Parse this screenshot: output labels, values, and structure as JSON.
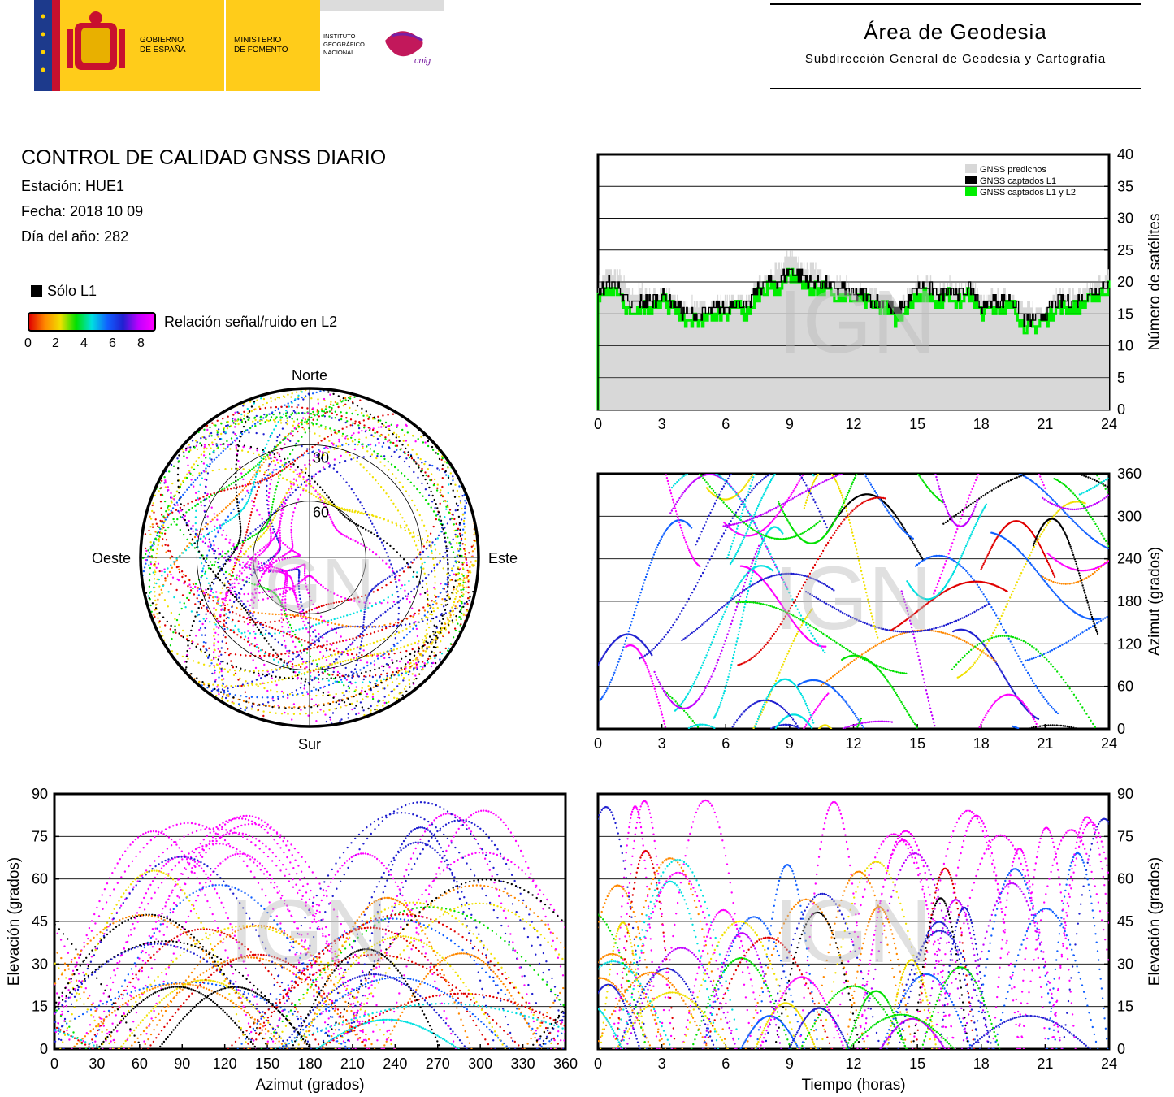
{
  "header": {
    "logos": {
      "gobierno": "GOBIERNO\nDE ESPAÑA",
      "ministerio": "MINISTERIO\nDE FOMENTO",
      "instituto": "INSTITUTO\nGEOGRÁFICO\nNACIONAL",
      "cnig": "cnig"
    },
    "title": "Área de Geodesia",
    "subtitle": "Subdirección General de Geodesia y Cartografía"
  },
  "info": {
    "title": "CONTROL DE CALIDAD GNSS DIARIO",
    "station": "Estación: HUE1",
    "date": "Fecha: 2018 10 09",
    "doy": "Día del año: 282"
  },
  "legend": {
    "l1_only": "Sólo L1",
    "snr_label": "Relación señal/ruido en L2",
    "snr_ticks": [
      "0",
      "2",
      "4",
      "6",
      "8"
    ]
  },
  "colors": {
    "snr_scale": [
      "#e00000",
      "#ff8800",
      "#f0e000",
      "#00e000",
      "#00e0e0",
      "#1060ff",
      "#2020d0",
      "#c000ff",
      "#ff00ff"
    ],
    "predicted": "#d8d8d8",
    "l1": "#000000",
    "l1l2": "#00ee00"
  },
  "watermark": "IGN",
  "chart_data": [
    {
      "id": "skyplot",
      "type": "scatter",
      "cardinals": {
        "north": "Norte",
        "south": "Sur",
        "east": "Este",
        "west": "Oeste"
      },
      "elevation_rings": [
        "30",
        "60"
      ]
    },
    {
      "id": "satellites",
      "type": "area",
      "ylabel": "Número de satélites",
      "x_ticks": [
        "0",
        "3",
        "6",
        "9",
        "12",
        "15",
        "18",
        "21",
        "24"
      ],
      "y_ticks": [
        "0",
        "5",
        "10",
        "15",
        "20",
        "25",
        "30",
        "35",
        "40"
      ],
      "xlim": [
        0,
        24
      ],
      "ylim": [
        0,
        40
      ],
      "legend": [
        "GNSS predichos",
        "GNSS captados L1",
        "GNSS captados L1 y L2"
      ],
      "x": [
        0,
        0.5,
        1,
        1.5,
        2,
        2.5,
        3,
        3.5,
        4,
        4.5,
        5,
        5.5,
        6,
        6.5,
        7,
        7.5,
        8,
        8.5,
        9,
        9.5,
        10,
        10.5,
        11,
        11.5,
        12,
        12.5,
        13,
        13.5,
        14,
        14.5,
        15,
        15.5,
        16,
        16.5,
        17,
        17.5,
        18,
        18.5,
        19,
        19.5,
        20,
        20.5,
        21,
        21.5,
        22,
        22.5,
        23,
        23.5,
        24
      ],
      "series": [
        {
          "name": "GNSS predichos",
          "values": [
            20,
            22,
            21,
            18,
            19,
            18,
            19,
            18,
            16,
            17,
            16,
            17,
            17,
            18,
            17,
            20,
            21,
            22,
            25,
            23,
            22,
            21,
            20,
            20,
            19,
            19,
            18,
            18,
            16,
            18,
            20,
            20,
            19,
            20,
            19,
            20,
            17,
            18,
            18,
            18,
            16,
            16,
            16,
            18,
            18,
            18,
            19,
            20,
            21
          ]
        },
        {
          "name": "GNSS captados L1",
          "values": [
            18,
            20,
            19,
            16,
            17,
            17,
            18,
            17,
            15,
            15,
            15,
            16,
            16,
            17,
            16,
            19,
            20,
            20,
            22,
            21,
            20,
            20,
            19,
            19,
            18,
            18,
            17,
            17,
            15,
            17,
            19,
            19,
            18,
            19,
            18,
            19,
            16,
            17,
            17,
            17,
            14,
            14,
            15,
            17,
            17,
            17,
            18,
            19,
            20
          ]
        },
        {
          "name": "GNSS captados L1 y L2",
          "values": [
            17,
            19,
            18,
            15,
            16,
            16,
            17,
            16,
            14,
            14,
            14,
            15,
            15,
            16,
            15,
            18,
            19,
            19,
            21,
            20,
            19,
            19,
            18,
            18,
            17,
            17,
            16,
            16,
            14,
            16,
            18,
            18,
            17,
            18,
            17,
            18,
            15,
            16,
            16,
            16,
            13,
            13,
            14,
            16,
            16,
            16,
            17,
            18,
            19
          ]
        }
      ]
    },
    {
      "id": "azimuth-time",
      "type": "scatter",
      "ylabel": "Azimut (grados)",
      "x_ticks": [
        "0",
        "3",
        "6",
        "9",
        "12",
        "15",
        "18",
        "21",
        "24"
      ],
      "y_ticks": [
        "0",
        "60",
        "120",
        "180",
        "240",
        "300",
        "360"
      ],
      "xlim": [
        0,
        24
      ],
      "ylim": [
        0,
        360
      ]
    },
    {
      "id": "elev-azimuth",
      "type": "scatter",
      "xlabel": "Azimut (grados)",
      "ylabel": "Elevación (grados)",
      "x_ticks": [
        "0",
        "30",
        "60",
        "90",
        "120",
        "150",
        "180",
        "210",
        "240",
        "270",
        "300",
        "330",
        "360"
      ],
      "y_ticks": [
        "0",
        "15",
        "30",
        "45",
        "60",
        "75",
        "90"
      ],
      "xlim": [
        0,
        360
      ],
      "ylim": [
        0,
        90
      ]
    },
    {
      "id": "elev-time",
      "type": "scatter",
      "xlabel": "Tiempo (horas)",
      "ylabel": "Elevación (grados)",
      "x_ticks": [
        "0",
        "3",
        "6",
        "9",
        "12",
        "15",
        "18",
        "21",
        "24"
      ],
      "y_ticks": [
        "0",
        "15",
        "30",
        "45",
        "60",
        "75",
        "90"
      ],
      "xlim": [
        0,
        24
      ],
      "ylim": [
        0,
        90
      ]
    }
  ]
}
